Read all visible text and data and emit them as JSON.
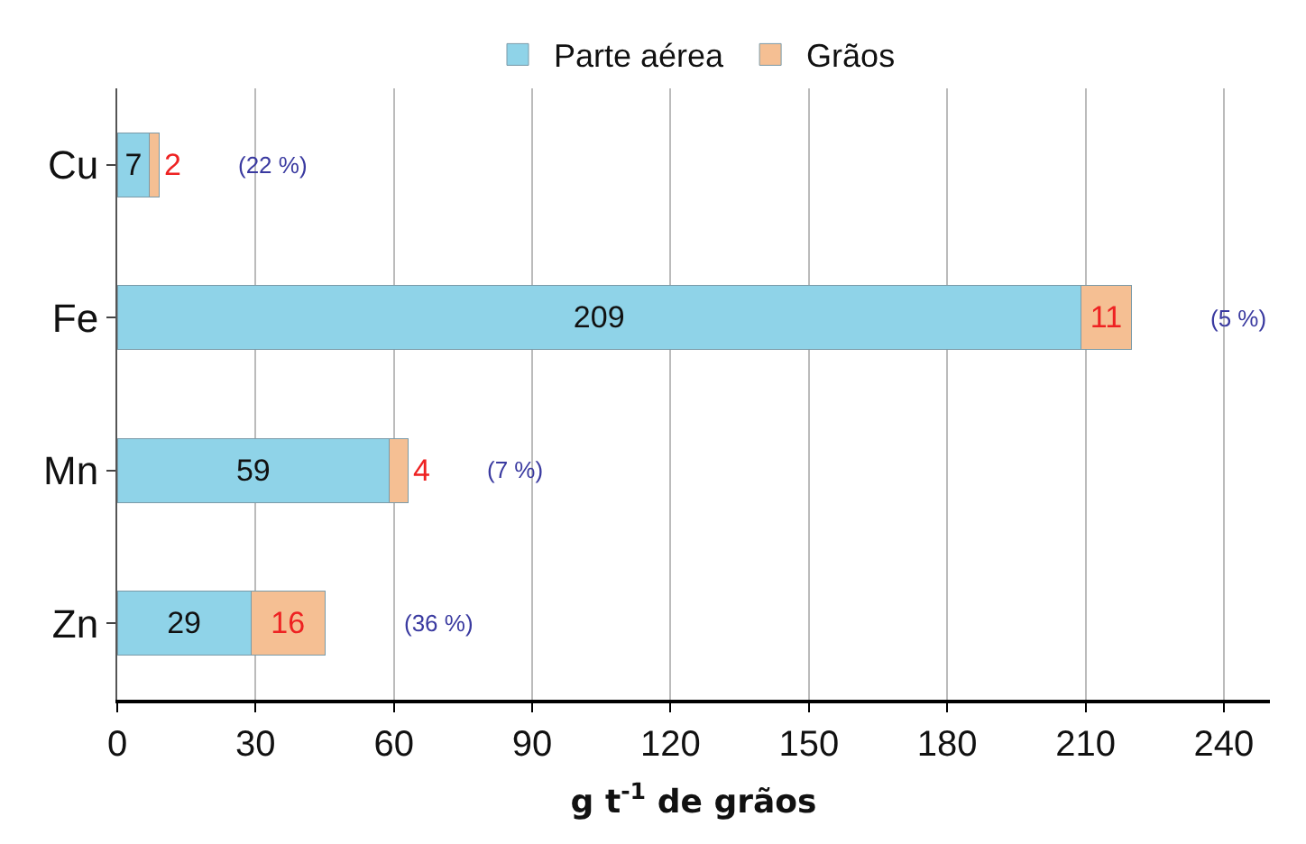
{
  "chart_data": {
    "type": "bar",
    "orientation": "horizontal",
    "stacked": true,
    "xlabel": "g t$^{-1}$ de grãos",
    "categories": [
      "Cu",
      "Fe",
      "Mn",
      "Zn"
    ],
    "series": [
      {
        "name": "Parte aérea",
        "color": "#8fd3e8",
        "values": [
          7,
          209,
          59,
          29
        ]
      },
      {
        "name": "Grãos",
        "color": "#f5bf93",
        "values": [
          2,
          11,
          4,
          16
        ]
      }
    ],
    "data_labels": true,
    "xlim": [
      0,
      250
    ],
    "xticks": [
      0,
      30,
      60,
      90,
      120,
      150,
      180,
      210,
      240
    ],
    "grid": "x",
    "legend": "top",
    "annotations": [
      "(22 %)",
      "(5 %)",
      "(7 %)",
      "(36 %)"
    ]
  }
}
